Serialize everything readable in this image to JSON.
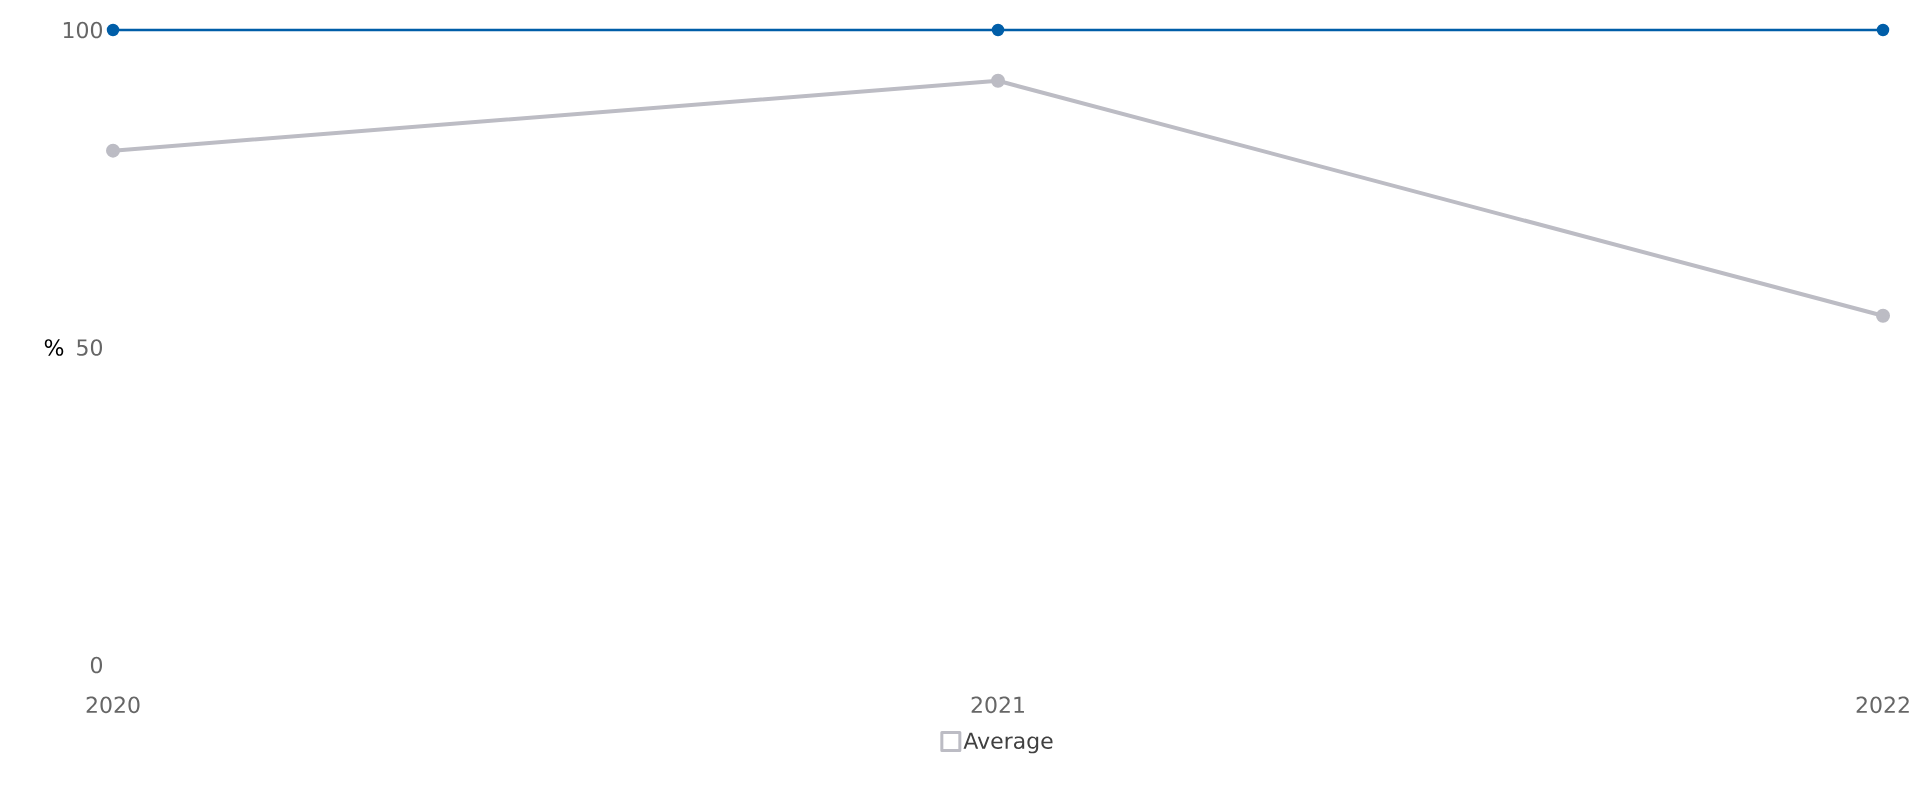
{
  "chart_data": {
    "type": "line",
    "x": [
      2020,
      2021,
      2022
    ],
    "xlim": [
      2020,
      2022
    ],
    "xticks": [
      2020,
      2021,
      2022
    ],
    "ylim": [
      0,
      100
    ],
    "yticks": [
      0,
      50,
      100
    ],
    "ylabel": "%",
    "marker": "circle",
    "line_style": "solid",
    "legend": "bottom",
    "series": [
      {
        "color": "#005ea8",
        "values": [
          100,
          100,
          100
        ]
      },
      {
        "name": "Average",
        "color": "#bcbcc4",
        "values": [
          81,
          92,
          55
        ]
      }
    ]
  }
}
